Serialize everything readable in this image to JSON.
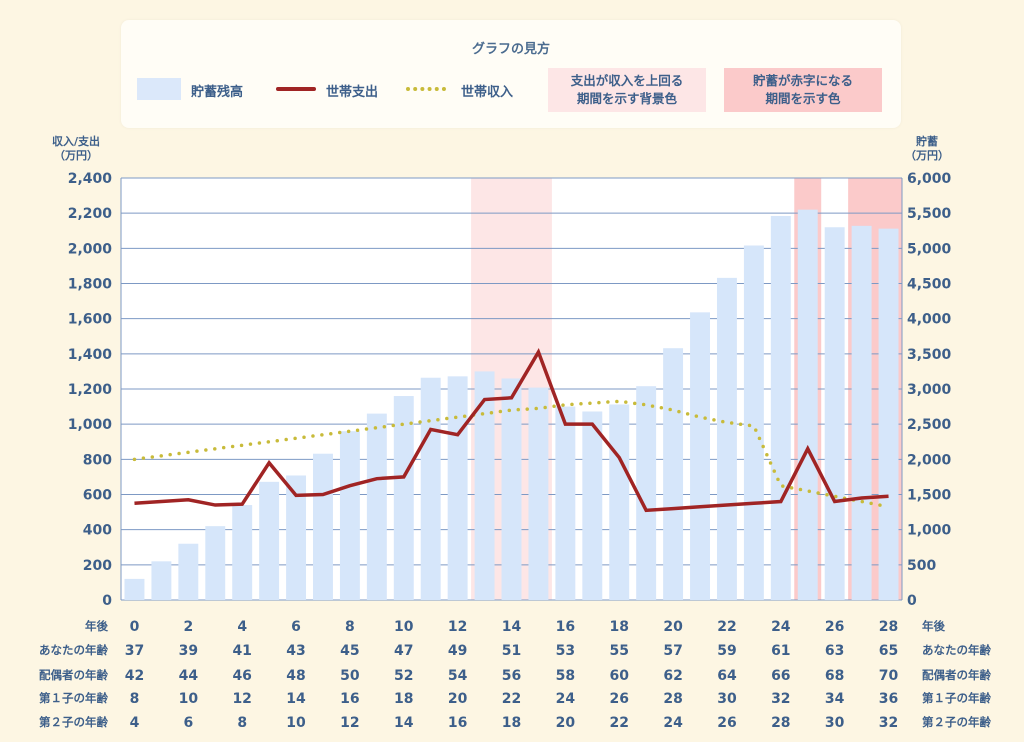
{
  "legend": {
    "title": "グラフの見方",
    "savings_label": "貯蓄残高",
    "expense_label": "世帯支出",
    "income_label": "世帯収入",
    "pink_light_line1": "支出が収入を上回る",
    "pink_light_line2": "期間を示す背景色",
    "pink_dark_line1": "貯蓄が赤字になる",
    "pink_dark_line2": "期間を示す色"
  },
  "axes": {
    "left_title_line1": "収入/支出",
    "left_title_line2": "（万円）",
    "right_title_line1": "貯蓄",
    "right_title_line2": "（万円）",
    "left_ticks": [
      "0",
      "200",
      "400",
      "600",
      "800",
      "1,000",
      "1,200",
      "1,400",
      "1,600",
      "1,800",
      "2,000",
      "2,200",
      "2,400"
    ],
    "right_ticks": [
      "0",
      "500",
      "1,000",
      "1,500",
      "2,000",
      "2,500",
      "3,000",
      "3,500",
      "4,000",
      "4,500",
      "5,000",
      "5,500",
      "6,000"
    ]
  },
  "rows": [
    {
      "label": "年後",
      "values": [
        "0",
        "2",
        "4",
        "6",
        "8",
        "10",
        "12",
        "14",
        "16",
        "18",
        "20",
        "22",
        "24",
        "26",
        "28"
      ]
    },
    {
      "label": "あなたの年齢",
      "values": [
        "37",
        "39",
        "41",
        "43",
        "45",
        "47",
        "49",
        "51",
        "53",
        "55",
        "57",
        "59",
        "61",
        "63",
        "65"
      ]
    },
    {
      "label": "配偶者の年齢",
      "values": [
        "42",
        "44",
        "46",
        "48",
        "50",
        "52",
        "54",
        "56",
        "58",
        "60",
        "62",
        "64",
        "66",
        "68",
        "70"
      ]
    },
    {
      "label": "第１子の年齢",
      "values": [
        "8",
        "10",
        "12",
        "14",
        "16",
        "18",
        "20",
        "22",
        "24",
        "26",
        "28",
        "30",
        "32",
        "34",
        "36"
      ]
    },
    {
      "label": "第２子の年齢",
      "values": [
        "4",
        "6",
        "8",
        "10",
        "12",
        "14",
        "16",
        "18",
        "20",
        "22",
        "24",
        "26",
        "28",
        "30",
        "32"
      ]
    }
  ],
  "colors": {
    "savings_bar": "#d6e6fa",
    "expense_line": "#a02424",
    "income_dots": "#c8bb3a",
    "pink_light": "#fde6e6",
    "pink_dark": "#fbcaca",
    "grid": "#7d99c4",
    "text": "#3d5f8a"
  },
  "chart_data": {
    "type": "bar",
    "x": [
      0,
      1,
      2,
      3,
      4,
      5,
      6,
      7,
      8,
      9,
      10,
      11,
      12,
      13,
      14,
      15,
      16,
      17,
      18,
      19,
      20,
      21,
      22,
      23,
      24,
      25,
      26,
      27,
      28
    ],
    "xlabel": "年後",
    "ylim_left": [
      0,
      2400
    ],
    "ylim_right": [
      0,
      6000
    ],
    "grid": true,
    "legend_position": "top",
    "series": [
      {
        "name": "貯蓄残高",
        "kind": "bar",
        "axis": "right",
        "values": [
          300,
          550,
          800,
          1050,
          1350,
          1680,
          1770,
          2080,
          2400,
          2650,
          2900,
          3160,
          3180,
          3250,
          3150,
          3020,
          2750,
          2680,
          2780,
          3040,
          3580,
          4090,
          4580,
          5040,
          5460,
          5550,
          5300,
          5320,
          5280
        ]
      },
      {
        "name": "世帯支出",
        "kind": "line",
        "axis": "left",
        "values": [
          550,
          560,
          570,
          540,
          545,
          780,
          595,
          600,
          650,
          690,
          700,
          970,
          940,
          1140,
          1150,
          1410,
          1000,
          1000,
          810,
          510,
          520,
          530,
          540,
          550,
          560,
          860,
          560,
          580,
          590
        ]
      },
      {
        "name": "世帯収入",
        "kind": "dotted",
        "axis": "left",
        "values": [
          800,
          820,
          840,
          860,
          880,
          900,
          920,
          940,
          960,
          980,
          1000,
          1020,
          1040,
          1060,
          1080,
          1090,
          1110,
          1120,
          1130,
          1110,
          1080,
          1040,
          1010,
          990,
          650,
          620,
          590,
          560,
          530
        ]
      }
    ],
    "shaded_light": [
      [
        13,
        15
      ]
    ],
    "shaded_dark": [
      [
        25,
        25
      ],
      [
        27,
        28
      ]
    ]
  }
}
